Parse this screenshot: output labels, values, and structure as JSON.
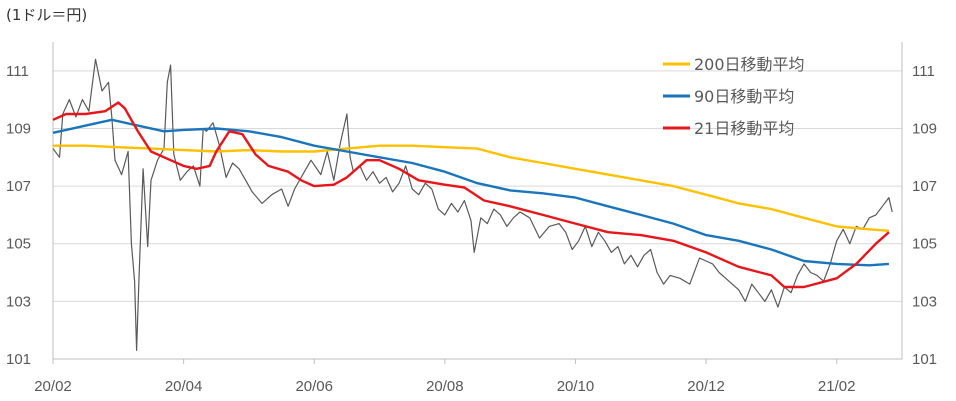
{
  "chart_data": {
    "type": "line",
    "unit_label": "(1ドル＝円)",
    "ylim": [
      101,
      112
    ],
    "y_ticks": [
      101,
      103,
      105,
      107,
      109,
      111
    ],
    "x_tick_labels": [
      "20/02",
      "20/04",
      "20/06",
      "20/08",
      "20/10",
      "20/12",
      "21/02"
    ],
    "x_range_months": 13,
    "grid": "horizontal",
    "legend_position": "top-right",
    "series": [
      {
        "name": "200日移動平均",
        "color": "#FFC000",
        "points": [
          [
            0.0,
            108.4
          ],
          [
            0.5,
            108.4
          ],
          [
            1.0,
            108.35
          ],
          [
            1.5,
            108.3
          ],
          [
            2.0,
            108.25
          ],
          [
            2.5,
            108.2
          ],
          [
            3.0,
            108.25
          ],
          [
            3.5,
            108.2
          ],
          [
            4.0,
            108.2
          ],
          [
            4.5,
            108.3
          ],
          [
            5.0,
            108.4
          ],
          [
            5.5,
            108.4
          ],
          [
            6.0,
            108.35
          ],
          [
            6.5,
            108.3
          ],
          [
            7.0,
            108.0
          ],
          [
            7.5,
            107.8
          ],
          [
            8.0,
            107.6
          ],
          [
            8.5,
            107.4
          ],
          [
            9.0,
            107.2
          ],
          [
            9.5,
            107.0
          ],
          [
            10.0,
            106.7
          ],
          [
            10.5,
            106.4
          ],
          [
            11.0,
            106.2
          ],
          [
            11.5,
            105.9
          ],
          [
            12.0,
            105.6
          ],
          [
            12.5,
            105.5
          ],
          [
            12.8,
            105.45
          ]
        ]
      },
      {
        "name": "90日移動平均",
        "color": "#1A75BC",
        "points": [
          [
            0.0,
            108.85
          ],
          [
            0.5,
            109.1
          ],
          [
            0.9,
            109.3
          ],
          [
            1.3,
            109.1
          ],
          [
            1.7,
            108.9
          ],
          [
            2.0,
            108.95
          ],
          [
            2.5,
            109.0
          ],
          [
            3.0,
            108.9
          ],
          [
            3.5,
            108.7
          ],
          [
            4.0,
            108.4
          ],
          [
            4.5,
            108.2
          ],
          [
            5.0,
            108.0
          ],
          [
            5.5,
            107.8
          ],
          [
            6.0,
            107.5
          ],
          [
            6.5,
            107.1
          ],
          [
            7.0,
            106.85
          ],
          [
            7.5,
            106.75
          ],
          [
            8.0,
            106.6
          ],
          [
            8.5,
            106.3
          ],
          [
            9.0,
            106.0
          ],
          [
            9.5,
            105.7
          ],
          [
            10.0,
            105.3
          ],
          [
            10.5,
            105.1
          ],
          [
            11.0,
            104.8
          ],
          [
            11.5,
            104.4
          ],
          [
            12.0,
            104.3
          ],
          [
            12.5,
            104.25
          ],
          [
            12.8,
            104.3
          ]
        ]
      },
      {
        "name": "21日移動平均",
        "color": "#E8151A",
        "points": [
          [
            0.0,
            109.3
          ],
          [
            0.2,
            109.5
          ],
          [
            0.5,
            109.5
          ],
          [
            0.8,
            109.6
          ],
          [
            1.0,
            109.9
          ],
          [
            1.1,
            109.7
          ],
          [
            1.3,
            108.9
          ],
          [
            1.5,
            108.2
          ],
          [
            1.8,
            107.9
          ],
          [
            2.0,
            107.7
          ],
          [
            2.2,
            107.6
          ],
          [
            2.4,
            107.7
          ],
          [
            2.5,
            108.2
          ],
          [
            2.7,
            108.9
          ],
          [
            2.9,
            108.8
          ],
          [
            3.1,
            108.1
          ],
          [
            3.3,
            107.7
          ],
          [
            3.6,
            107.5
          ],
          [
            3.8,
            107.2
          ],
          [
            4.0,
            107.0
          ],
          [
            4.3,
            107.05
          ],
          [
            4.5,
            107.3
          ],
          [
            4.8,
            107.9
          ],
          [
            5.0,
            107.9
          ],
          [
            5.3,
            107.6
          ],
          [
            5.6,
            107.2
          ],
          [
            6.0,
            107.05
          ],
          [
            6.3,
            106.95
          ],
          [
            6.6,
            106.5
          ],
          [
            7.0,
            106.3
          ],
          [
            7.5,
            106.0
          ],
          [
            8.0,
            105.7
          ],
          [
            8.5,
            105.4
          ],
          [
            9.0,
            105.3
          ],
          [
            9.5,
            105.1
          ],
          [
            10.0,
            104.7
          ],
          [
            10.5,
            104.2
          ],
          [
            11.0,
            103.9
          ],
          [
            11.2,
            103.5
          ],
          [
            11.5,
            103.5
          ],
          [
            12.0,
            103.8
          ],
          [
            12.3,
            104.3
          ],
          [
            12.6,
            105.0
          ],
          [
            12.8,
            105.4
          ]
        ]
      },
      {
        "name": "",
        "color": "#595959",
        "points": [
          [
            0.0,
            108.3
          ],
          [
            0.1,
            108.0
          ],
          [
            0.15,
            109.5
          ],
          [
            0.25,
            110.0
          ],
          [
            0.35,
            109.4
          ],
          [
            0.45,
            110.0
          ],
          [
            0.55,
            109.6
          ],
          [
            0.65,
            111.4
          ],
          [
            0.75,
            110.3
          ],
          [
            0.85,
            110.6
          ],
          [
            0.9,
            109.4
          ],
          [
            0.95,
            107.9
          ],
          [
            1.05,
            107.4
          ],
          [
            1.15,
            108.2
          ],
          [
            1.2,
            105.0
          ],
          [
            1.25,
            103.7
          ],
          [
            1.28,
            101.3
          ],
          [
            1.32,
            104.0
          ],
          [
            1.38,
            107.6
          ],
          [
            1.45,
            104.9
          ],
          [
            1.5,
            107.2
          ],
          [
            1.6,
            107.9
          ],
          [
            1.7,
            108.3
          ],
          [
            1.75,
            110.6
          ],
          [
            1.8,
            111.2
          ],
          [
            1.85,
            108.1
          ],
          [
            1.95,
            107.2
          ],
          [
            2.05,
            107.5
          ],
          [
            2.15,
            107.7
          ],
          [
            2.25,
            107.0
          ],
          [
            2.3,
            109.0
          ],
          [
            2.35,
            108.9
          ],
          [
            2.45,
            109.2
          ],
          [
            2.55,
            108.4
          ],
          [
            2.65,
            107.3
          ],
          [
            2.75,
            107.8
          ],
          [
            2.85,
            107.6
          ],
          [
            2.95,
            107.2
          ],
          [
            3.05,
            106.8
          ],
          [
            3.2,
            106.4
          ],
          [
            3.35,
            106.7
          ],
          [
            3.5,
            106.9
          ],
          [
            3.6,
            106.3
          ],
          [
            3.7,
            106.9
          ],
          [
            3.85,
            107.5
          ],
          [
            3.95,
            107.9
          ],
          [
            4.1,
            107.4
          ],
          [
            4.2,
            108.2
          ],
          [
            4.3,
            107.2
          ],
          [
            4.4,
            108.5
          ],
          [
            4.5,
            109.5
          ],
          [
            4.55,
            108.0
          ],
          [
            4.6,
            107.5
          ],
          [
            4.7,
            107.7
          ],
          [
            4.8,
            107.2
          ],
          [
            4.9,
            107.5
          ],
          [
            5.0,
            107.1
          ],
          [
            5.1,
            107.3
          ],
          [
            5.2,
            106.8
          ],
          [
            5.3,
            107.1
          ],
          [
            5.4,
            107.7
          ],
          [
            5.5,
            106.9
          ],
          [
            5.6,
            106.7
          ],
          [
            5.7,
            107.1
          ],
          [
            5.8,
            106.9
          ],
          [
            5.9,
            106.2
          ],
          [
            6.0,
            106.0
          ],
          [
            6.1,
            106.4
          ],
          [
            6.2,
            106.1
          ],
          [
            6.3,
            106.5
          ],
          [
            6.4,
            105.8
          ],
          [
            6.45,
            104.7
          ],
          [
            6.55,
            105.9
          ],
          [
            6.65,
            105.7
          ],
          [
            6.75,
            106.2
          ],
          [
            6.85,
            106.0
          ],
          [
            6.95,
            105.6
          ],
          [
            7.05,
            105.9
          ],
          [
            7.15,
            106.1
          ],
          [
            7.3,
            105.9
          ],
          [
            7.45,
            105.2
          ],
          [
            7.6,
            105.6
          ],
          [
            7.75,
            105.7
          ],
          [
            7.85,
            105.4
          ],
          [
            7.95,
            104.8
          ],
          [
            8.05,
            105.1
          ],
          [
            8.15,
            105.6
          ],
          [
            8.25,
            104.9
          ],
          [
            8.35,
            105.4
          ],
          [
            8.45,
            105.1
          ],
          [
            8.55,
            104.7
          ],
          [
            8.65,
            104.9
          ],
          [
            8.75,
            104.3
          ],
          [
            8.85,
            104.6
          ],
          [
            8.95,
            104.2
          ],
          [
            9.05,
            104.6
          ],
          [
            9.15,
            104.8
          ],
          [
            9.25,
            104.0
          ],
          [
            9.35,
            103.6
          ],
          [
            9.45,
            103.9
          ],
          [
            9.6,
            103.8
          ],
          [
            9.75,
            103.6
          ],
          [
            9.9,
            104.5
          ],
          [
            10.0,
            104.4
          ],
          [
            10.1,
            104.3
          ],
          [
            10.2,
            104.0
          ],
          [
            10.3,
            103.8
          ],
          [
            10.4,
            103.6
          ],
          [
            10.5,
            103.4
          ],
          [
            10.6,
            103.0
          ],
          [
            10.7,
            103.6
          ],
          [
            10.8,
            103.3
          ],
          [
            10.9,
            103.0
          ],
          [
            11.0,
            103.4
          ],
          [
            11.1,
            102.8
          ],
          [
            11.2,
            103.5
          ],
          [
            11.3,
            103.3
          ],
          [
            11.4,
            103.9
          ],
          [
            11.5,
            104.3
          ],
          [
            11.6,
            104.0
          ],
          [
            11.7,
            103.9
          ],
          [
            11.8,
            103.7
          ],
          [
            11.9,
            104.3
          ],
          [
            12.0,
            105.1
          ],
          [
            12.1,
            105.5
          ],
          [
            12.2,
            105.0
          ],
          [
            12.3,
            105.6
          ],
          [
            12.4,
            105.5
          ],
          [
            12.5,
            105.9
          ],
          [
            12.6,
            106.0
          ],
          [
            12.7,
            106.3
          ],
          [
            12.8,
            106.6
          ],
          [
            12.85,
            106.1
          ]
        ]
      }
    ]
  }
}
